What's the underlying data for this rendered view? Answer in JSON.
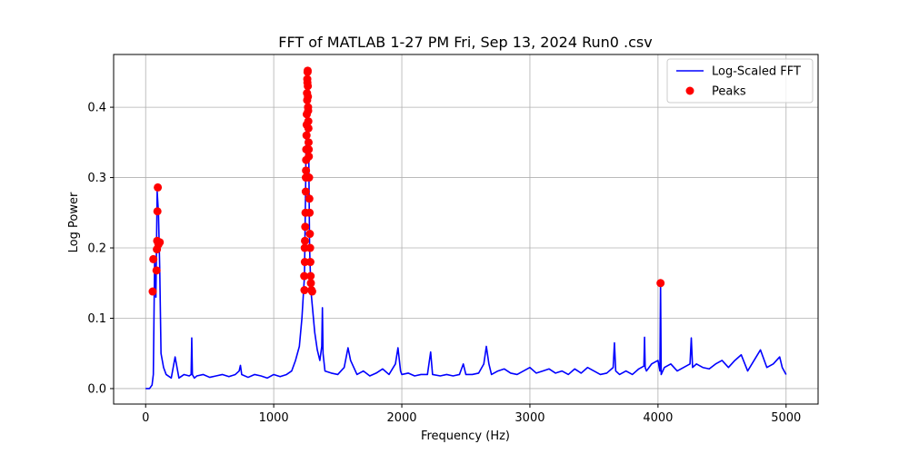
{
  "chart_data": {
    "type": "line",
    "title": "FFT of MATLAB 1-27 PM Fri, Sep 13, 2024 Run0 .csv",
    "xlabel": "Frequency (Hz)",
    "ylabel": "Log Power",
    "xlim": [
      -250,
      5250
    ],
    "ylim": [
      -0.022,
      0.475
    ],
    "x_ticks": [
      0,
      1000,
      2000,
      3000,
      4000,
      5000
    ],
    "y_ticks": [
      0.0,
      0.1,
      0.2,
      0.3,
      0.4
    ],
    "x_tick_labels": [
      "0",
      "1000",
      "2000",
      "3000",
      "4000",
      "5000"
    ],
    "y_tick_labels": [
      "0.0",
      "0.1",
      "0.2",
      "0.3",
      "0.4"
    ],
    "grid": true,
    "legend_position": "top-right",
    "series": [
      {
        "name": "Log-Scaled FFT",
        "kind": "line",
        "color": "#0000ff",
        "x": [
          0,
          30,
          50,
          60,
          70,
          80,
          90,
          100,
          110,
          120,
          140,
          160,
          200,
          230,
          260,
          300,
          340,
          355,
          360,
          365,
          380,
          400,
          450,
          500,
          550,
          600,
          650,
          700,
          730,
          740,
          750,
          800,
          850,
          900,
          950,
          1000,
          1050,
          1100,
          1140,
          1170,
          1200,
          1220,
          1240,
          1250,
          1255,
          1260,
          1265,
          1270,
          1275,
          1280,
          1290,
          1300,
          1320,
          1340,
          1360,
          1375,
          1380,
          1385,
          1400,
          1450,
          1500,
          1550,
          1580,
          1600,
          1650,
          1700,
          1750,
          1800,
          1850,
          1900,
          1950,
          1970,
          1990,
          2000,
          2050,
          2100,
          2150,
          2200,
          2225,
          2240,
          2300,
          2350,
          2400,
          2450,
          2480,
          2500,
          2550,
          2600,
          2640,
          2660,
          2680,
          2700,
          2750,
          2800,
          2850,
          2900,
          2950,
          3000,
          3050,
          3100,
          3150,
          3200,
          3250,
          3300,
          3350,
          3400,
          3450,
          3500,
          3550,
          3600,
          3650,
          3660,
          3670,
          3700,
          3750,
          3800,
          3850,
          3890,
          3895,
          3900,
          3910,
          3950,
          4000,
          4015,
          4020,
          4025,
          4050,
          4100,
          4150,
          4200,
          4250,
          4260,
          4270,
          4300,
          4350,
          4400,
          4450,
          4500,
          4550,
          4600,
          4650,
          4700,
          4750,
          4800,
          4850,
          4900,
          4950,
          4970,
          5000
        ],
        "y": [
          0.0,
          0.0,
          0.005,
          0.02,
          0.18,
          0.13,
          0.28,
          0.25,
          0.17,
          0.05,
          0.03,
          0.02,
          0.015,
          0.045,
          0.015,
          0.02,
          0.018,
          0.02,
          0.072,
          0.02,
          0.015,
          0.018,
          0.02,
          0.016,
          0.018,
          0.02,
          0.017,
          0.02,
          0.025,
          0.033,
          0.02,
          0.016,
          0.02,
          0.018,
          0.015,
          0.02,
          0.017,
          0.02,
          0.025,
          0.04,
          0.06,
          0.1,
          0.16,
          0.3,
          0.41,
          0.45,
          0.38,
          0.42,
          0.3,
          0.2,
          0.14,
          0.12,
          0.08,
          0.055,
          0.04,
          0.06,
          0.115,
          0.05,
          0.025,
          0.022,
          0.02,
          0.03,
          0.058,
          0.04,
          0.02,
          0.025,
          0.018,
          0.022,
          0.028,
          0.02,
          0.035,
          0.058,
          0.025,
          0.02,
          0.022,
          0.018,
          0.02,
          0.02,
          0.052,
          0.02,
          0.018,
          0.02,
          0.018,
          0.02,
          0.035,
          0.02,
          0.02,
          0.022,
          0.035,
          0.06,
          0.035,
          0.02,
          0.025,
          0.028,
          0.022,
          0.02,
          0.025,
          0.03,
          0.022,
          0.025,
          0.028,
          0.022,
          0.025,
          0.02,
          0.028,
          0.022,
          0.03,
          0.025,
          0.02,
          0.022,
          0.03,
          0.065,
          0.025,
          0.02,
          0.025,
          0.02,
          0.028,
          0.032,
          0.073,
          0.03,
          0.025,
          0.035,
          0.04,
          0.025,
          0.15,
          0.02,
          0.03,
          0.035,
          0.025,
          0.03,
          0.035,
          0.072,
          0.03,
          0.035,
          0.03,
          0.028,
          0.035,
          0.04,
          0.03,
          0.04,
          0.048,
          0.025,
          0.04,
          0.055,
          0.03,
          0.035,
          0.045,
          0.03,
          0.02
        ]
      },
      {
        "name": "Peaks",
        "kind": "scatter",
        "color": "#ff0000",
        "x": [
          55,
          60,
          85,
          88,
          90,
          92,
          95,
          100,
          110,
          1240,
          1243,
          1246,
          1248,
          1250,
          1252,
          1254,
          1256,
          1258,
          1260,
          1262,
          1264,
          1265,
          1266,
          1268,
          1270,
          1272,
          1274,
          1276,
          1278,
          1280,
          1282,
          1284,
          1286,
          1288,
          1290,
          1295,
          1300,
          1238,
          1242,
          1244,
          1251,
          1253,
          1257,
          1261,
          1263,
          1267,
          1269,
          1271,
          1273,
          4020
        ],
        "y": [
          0.138,
          0.184,
          0.168,
          0.198,
          0.21,
          0.252,
          0.286,
          0.205,
          0.208,
          0.14,
          0.18,
          0.23,
          0.25,
          0.28,
          0.31,
          0.34,
          0.36,
          0.39,
          0.42,
          0.44,
          0.45,
          0.452,
          0.43,
          0.4,
          0.38,
          0.35,
          0.33,
          0.3,
          0.27,
          0.25,
          0.22,
          0.2,
          0.18,
          0.16,
          0.15,
          0.14,
          0.138,
          0.16,
          0.2,
          0.21,
          0.3,
          0.325,
          0.375,
          0.41,
          0.435,
          0.415,
          0.395,
          0.37,
          0.34,
          0.15
        ]
      }
    ]
  }
}
